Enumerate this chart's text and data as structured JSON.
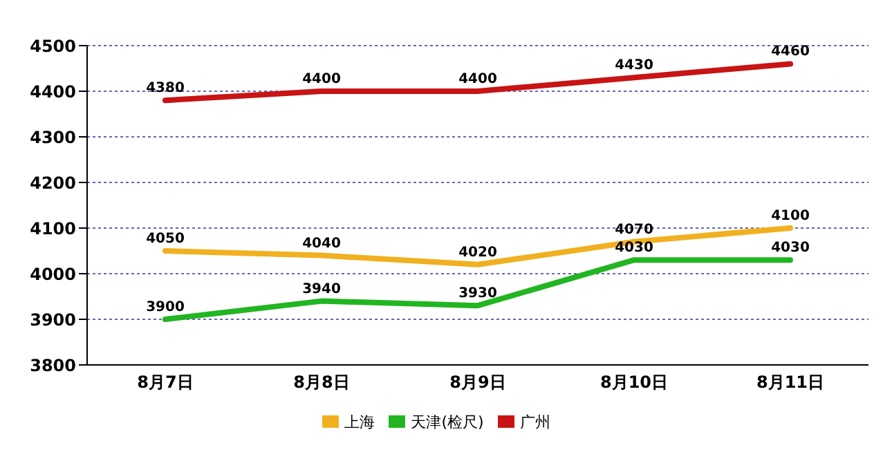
{
  "chart_data": {
    "type": "line",
    "categories": [
      "8月7日",
      "8月8日",
      "8月9日",
      "8月10日",
      "8月11日"
    ],
    "series": [
      {
        "name": "上海",
        "color": "#f0b020",
        "values": [
          4050,
          4040,
          4020,
          4070,
          4100
        ]
      },
      {
        "name": "天津(检尺)",
        "color": "#22b522",
        "values": [
          3900,
          3940,
          3930,
          4030,
          4030
        ]
      },
      {
        "name": "广州",
        "color": "#c81414",
        "values": [
          4380,
          4400,
          4400,
          4430,
          4460
        ]
      }
    ],
    "ylim": [
      3800,
      4500
    ],
    "yticks": [
      3800,
      3900,
      4000,
      4100,
      4200,
      4300,
      4400,
      4500
    ],
    "grid": "y",
    "legend": "bottom",
    "data_labels": true,
    "marker": "none",
    "line_style": "solid"
  }
}
